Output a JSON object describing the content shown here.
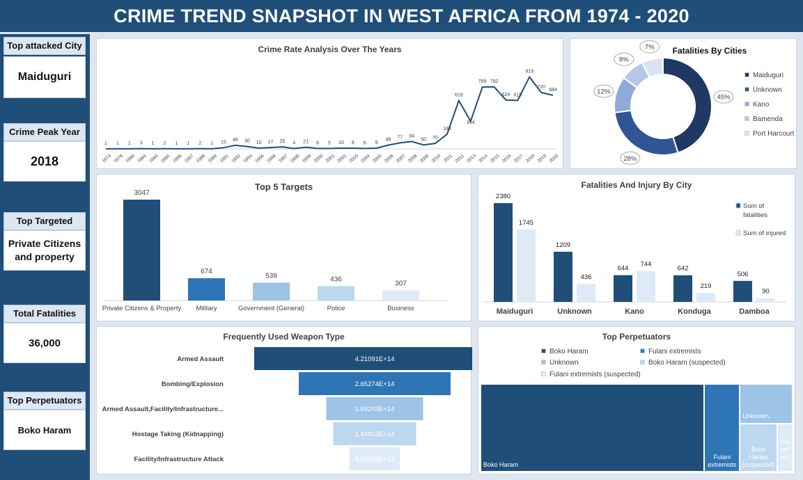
{
  "title": "CRIME TREND SNAPSHOT IN WEST AFRICA FROM 1974 - 2020",
  "kpis": [
    {
      "label": "Top attacked City",
      "value": "Maiduguri"
    },
    {
      "label": "Crime Peak Year",
      "value": "2018"
    },
    {
      "label": "Top Targeted",
      "value": "Private Citizens and property"
    },
    {
      "label": "Total Fatalities",
      "value": "36,000"
    },
    {
      "label": "Top Perpetuators",
      "value": "Boko Haram"
    }
  ],
  "colors": {
    "dark": "#1f4e79",
    "mid": "#2e75b6",
    "light": "#9dc3e6",
    "lighter": "#bdd7ee",
    "lightest": "#deebf7",
    "line": "#1f4e79"
  },
  "chart_data": [
    {
      "type": "line",
      "title": "Crime Rate Analysis Over The Years",
      "categories": [
        "1974",
        "1976",
        "1980",
        "1983",
        "1984",
        "1985",
        "1986",
        "1987",
        "1988",
        "1989",
        "1991",
        "1992",
        "1994",
        "1995",
        "1996",
        "1997",
        "1998",
        "1999",
        "2000",
        "2001",
        "2002",
        "2003",
        "2004",
        "2005",
        "2006",
        "2007",
        "2008",
        "2009",
        "2010",
        "2011",
        "2012",
        "2013",
        "2014",
        "2015",
        "2016",
        "2017",
        "2018",
        "2019",
        "2020"
      ],
      "values": [
        1,
        1,
        1,
        3,
        1,
        2,
        1,
        1,
        2,
        1,
        15,
        46,
        30,
        10,
        17,
        25,
        4,
        21,
        6,
        5,
        10,
        9,
        6,
        9,
        48,
        77,
        94,
        50,
        70,
        188,
        616,
        354,
        789,
        792,
        624,
        619,
        919,
        720,
        684
      ],
      "ylim": [
        0,
        1000
      ]
    },
    {
      "type": "pie",
      "title": "Fatalities By Cities",
      "labels": [
        "Maiduguri",
        "Unknown",
        "Kano",
        "Bamenda",
        "Port Harcourt"
      ],
      "values": [
        45,
        28,
        12,
        8,
        7
      ],
      "value_labels": [
        "45%",
        "28%",
        "12%",
        "8%",
        "7%"
      ],
      "colors": [
        "#1f3864",
        "#2f5597",
        "#8faadc",
        "#b4c7e7",
        "#dae3f3"
      ],
      "legend": "right"
    },
    {
      "type": "bar",
      "title": "Top 5 Targets",
      "categories": [
        "Private Citizens & Property",
        "Military",
        "Government (General)",
        "Police",
        "Business"
      ],
      "values": [
        3047,
        674,
        539,
        436,
        307
      ],
      "colors": [
        "#1f4e79",
        "#2e75b6",
        "#9dc3e6",
        "#bdd7ee",
        "#deebf7"
      ]
    },
    {
      "type": "bar",
      "title": "Fatalities And Injury By City",
      "categories": [
        "Maiduguri",
        "Unknown",
        "Kano",
        "Konduga",
        "Damboa"
      ],
      "series": [
        {
          "name": "Sum of fatalities",
          "values": [
            2380,
            1209,
            644,
            642,
            506
          ],
          "color": "#1f4e79"
        },
        {
          "name": "Sum of injured",
          "values": [
            1745,
            436,
            744,
            219,
            90
          ],
          "color": "#deebf7"
        }
      ],
      "legend": "right"
    },
    {
      "type": "bar",
      "title": "Frequently Used Weapon Type",
      "categories": [
        "Armed Assault",
        "Bombing/Explosion",
        "Armed Assault,Facility/Infrastructure...",
        "Hostage Taking (Kidnapping)",
        "Facility/Infrastructure Attack"
      ],
      "values": [
        421091000000000,
        265274000000000,
        169203000000000,
        144912000000000,
        88264500000000
      ],
      "value_labels": [
        "4.21091E+14",
        "2.65274E+14",
        "1.69203E+14",
        "1.44912E+14",
        "8.82645E+13"
      ],
      "colors": [
        "#1f4e79",
        "#2e75b6",
        "#9dc3e6",
        "#bdd7ee",
        "#deebf7"
      ]
    },
    {
      "type": "treemap",
      "title": "Top Perpetuators",
      "labels": [
        "Boko Haram",
        "Fulani extremists",
        "Unknown",
        "Boko Haram (suspected)",
        "Fulani extremists (suspected)"
      ],
      "tile_labels": [
        "Boko Haram",
        "Fulani extremists",
        "Unknown",
        "Boko Haram (suspected)",
        "Ful ani ext r..."
      ],
      "values": [
        62,
        11,
        14,
        11,
        4
      ],
      "colors": [
        "#1f4e79",
        "#2e75b6",
        "#9dc3e6",
        "#bdd7ee",
        "#deebf7"
      ],
      "legend": "top"
    }
  ]
}
